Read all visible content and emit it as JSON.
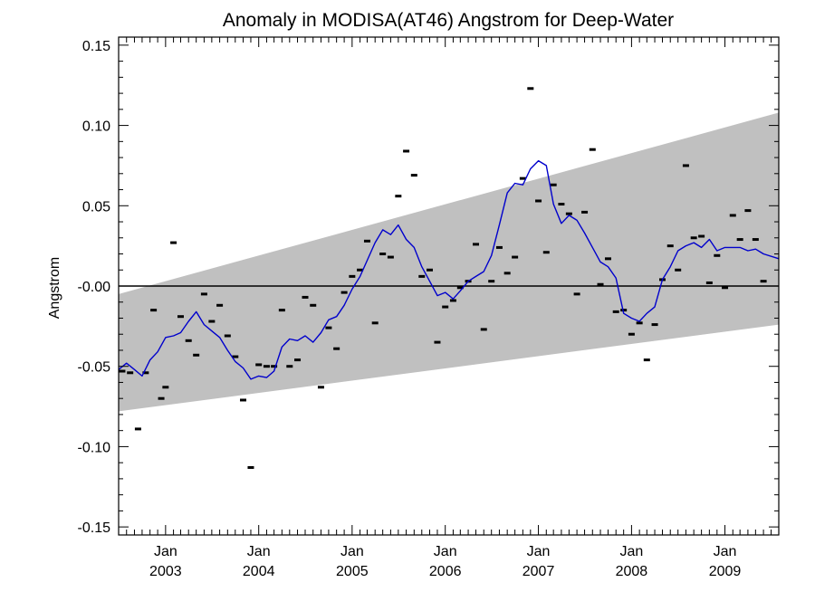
{
  "chart_data": {
    "type": "line",
    "title": "Anomaly in MODISA(AT46) Angstrom for Deep-Water",
    "xlabel": "",
    "ylabel": "Angstrom",
    "xlim": [
      "2002-07-01",
      "2009-07-31"
    ],
    "ylim": [
      -0.155,
      0.155
    ],
    "y_ticks": [
      -0.15,
      -0.1,
      -0.05,
      0.0,
      0.05,
      0.1,
      0.15
    ],
    "y_tick_labels": [
      "-0.15",
      "-0.10",
      "-0.05",
      "-0.00",
      "0.05",
      "0.10",
      "0.15"
    ],
    "x_ticks": [
      {
        "date": "2003-01-01",
        "month": "Jan",
        "year": "2003"
      },
      {
        "date": "2004-01-01",
        "month": "Jan",
        "year": "2004"
      },
      {
        "date": "2005-01-01",
        "month": "Jan",
        "year": "2005"
      },
      {
        "date": "2006-01-01",
        "month": "Jan",
        "year": "2006"
      },
      {
        "date": "2007-01-01",
        "month": "Jan",
        "year": "2007"
      },
      {
        "date": "2008-01-01",
        "month": "Jan",
        "year": "2008"
      },
      {
        "date": "2009-01-01",
        "month": "Jan",
        "year": "2009"
      }
    ],
    "grid": false,
    "zero_line": 0,
    "band": {
      "color": "#c0c0c0",
      "lower": [
        [
          "2002-07-01",
          -0.078
        ],
        [
          "2009-07-31",
          -0.024
        ]
      ],
      "upper": [
        [
          "2002-07-01",
          -0.005
        ],
        [
          "2009-07-31",
          0.108
        ]
      ]
    },
    "series": [
      {
        "kind": "markers",
        "color": "#000000",
        "points": [
          [
            "2002-07-15",
            -0.053
          ],
          [
            "2002-08-15",
            -0.054
          ],
          [
            "2002-09-15",
            -0.089
          ],
          [
            "2002-10-15",
            -0.054
          ],
          [
            "2002-11-15",
            -0.015
          ],
          [
            "2002-12-15",
            -0.07
          ],
          [
            "2003-01-01",
            -0.063
          ],
          [
            "2003-02-01",
            0.027
          ],
          [
            "2003-03-01",
            -0.019
          ],
          [
            "2003-04-01",
            -0.034
          ],
          [
            "2003-05-01",
            -0.043
          ],
          [
            "2003-06-01",
            -0.005
          ],
          [
            "2003-07-01",
            -0.022
          ],
          [
            "2003-08-01",
            -0.012
          ],
          [
            "2003-09-01",
            -0.031
          ],
          [
            "2003-10-01",
            -0.044
          ],
          [
            "2003-11-01",
            -0.071
          ],
          [
            "2003-12-01",
            -0.113
          ],
          [
            "2004-01-01",
            -0.049
          ],
          [
            "2004-02-01",
            -0.05
          ],
          [
            "2004-03-01",
            -0.05
          ],
          [
            "2004-04-01",
            -0.015
          ],
          [
            "2004-05-01",
            -0.05
          ],
          [
            "2004-06-01",
            -0.046
          ],
          [
            "2004-07-01",
            -0.007
          ],
          [
            "2004-08-01",
            -0.012
          ],
          [
            "2004-09-01",
            -0.063
          ],
          [
            "2004-10-01",
            -0.026
          ],
          [
            "2004-11-01",
            -0.039
          ],
          [
            "2004-12-01",
            -0.004
          ],
          [
            "2005-01-01",
            0.006
          ],
          [
            "2005-02-01",
            0.01
          ],
          [
            "2005-03-01",
            0.028
          ],
          [
            "2005-04-01",
            -0.023
          ],
          [
            "2005-05-01",
            0.02
          ],
          [
            "2005-06-01",
            0.018
          ],
          [
            "2005-07-01",
            0.056
          ],
          [
            "2005-08-01",
            0.084
          ],
          [
            "2005-09-01",
            0.069
          ],
          [
            "2005-10-01",
            0.006
          ],
          [
            "2005-11-01",
            0.01
          ],
          [
            "2005-12-01",
            -0.035
          ],
          [
            "2006-01-01",
            -0.013
          ],
          [
            "2006-02-01",
            -0.009
          ],
          [
            "2006-03-01",
            -0.001
          ],
          [
            "2006-04-01",
            0.003
          ],
          [
            "2006-05-01",
            0.026
          ],
          [
            "2006-06-01",
            -0.027
          ],
          [
            "2006-07-01",
            0.003
          ],
          [
            "2006-08-01",
            0.024
          ],
          [
            "2006-09-01",
            0.008
          ],
          [
            "2006-10-01",
            0.018
          ],
          [
            "2006-11-01",
            0.067
          ],
          [
            "2006-12-01",
            0.123
          ],
          [
            "2007-01-01",
            0.053
          ],
          [
            "2007-02-01",
            0.021
          ],
          [
            "2007-03-01",
            0.063
          ],
          [
            "2007-04-01",
            0.051
          ],
          [
            "2007-05-01",
            0.045
          ],
          [
            "2007-06-01",
            -0.005
          ],
          [
            "2007-07-01",
            0.046
          ],
          [
            "2007-08-01",
            0.085
          ],
          [
            "2007-09-01",
            0.001
          ],
          [
            "2007-10-01",
            0.017
          ],
          [
            "2007-11-01",
            -0.016
          ],
          [
            "2007-12-01",
            -0.015
          ],
          [
            "2008-01-01",
            -0.03
          ],
          [
            "2008-02-01",
            -0.023
          ],
          [
            "2008-03-01",
            -0.046
          ],
          [
            "2008-04-01",
            -0.024
          ],
          [
            "2008-05-01",
            0.004
          ],
          [
            "2008-06-01",
            0.025
          ],
          [
            "2008-07-01",
            0.01
          ],
          [
            "2008-08-01",
            0.075
          ],
          [
            "2008-09-01",
            0.03
          ],
          [
            "2008-10-01",
            0.031
          ],
          [
            "2008-11-01",
            0.002
          ],
          [
            "2008-12-01",
            0.019
          ],
          [
            "2009-01-01",
            -0.001
          ],
          [
            "2009-02-01",
            0.044
          ],
          [
            "2009-03-01",
            0.029
          ],
          [
            "2009-04-01",
            0.047
          ],
          [
            "2009-05-01",
            0.029
          ],
          [
            "2009-06-01",
            0.003
          ]
        ]
      },
      {
        "kind": "line",
        "color": "#0000cc",
        "points": [
          [
            "2002-07-01",
            -0.052
          ],
          [
            "2002-08-01",
            -0.048
          ],
          [
            "2002-09-01",
            -0.052
          ],
          [
            "2002-10-01",
            -0.056
          ],
          [
            "2002-11-01",
            -0.046
          ],
          [
            "2002-12-01",
            -0.041
          ],
          [
            "2003-01-01",
            -0.032
          ],
          [
            "2003-02-01",
            -0.031
          ],
          [
            "2003-03-01",
            -0.029
          ],
          [
            "2003-04-01",
            -0.022
          ],
          [
            "2003-05-01",
            -0.016
          ],
          [
            "2003-06-01",
            -0.024
          ],
          [
            "2003-07-01",
            -0.028
          ],
          [
            "2003-08-01",
            -0.032
          ],
          [
            "2003-09-01",
            -0.04
          ],
          [
            "2003-10-01",
            -0.047
          ],
          [
            "2003-11-01",
            -0.051
          ],
          [
            "2003-12-01",
            -0.058
          ],
          [
            "2004-01-01",
            -0.056
          ],
          [
            "2004-02-01",
            -0.057
          ],
          [
            "2004-03-01",
            -0.053
          ],
          [
            "2004-04-01",
            -0.038
          ],
          [
            "2004-05-01",
            -0.033
          ],
          [
            "2004-06-01",
            -0.034
          ],
          [
            "2004-07-01",
            -0.031
          ],
          [
            "2004-08-01",
            -0.035
          ],
          [
            "2004-09-01",
            -0.029
          ],
          [
            "2004-10-01",
            -0.021
          ],
          [
            "2004-11-01",
            -0.019
          ],
          [
            "2004-12-01",
            -0.012
          ],
          [
            "2005-01-01",
            -0.002
          ],
          [
            "2005-02-01",
            0.006
          ],
          [
            "2005-03-01",
            0.016
          ],
          [
            "2005-04-01",
            0.027
          ],
          [
            "2005-05-01",
            0.035
          ],
          [
            "2005-06-01",
            0.032
          ],
          [
            "2005-07-01",
            0.038
          ],
          [
            "2005-08-01",
            0.029
          ],
          [
            "2005-09-01",
            0.024
          ],
          [
            "2005-10-01",
            0.012
          ],
          [
            "2005-11-01",
            0.003
          ],
          [
            "2005-12-01",
            -0.006
          ],
          [
            "2006-01-01",
            -0.004
          ],
          [
            "2006-02-01",
            -0.008
          ],
          [
            "2006-03-01",
            -0.003
          ],
          [
            "2006-04-01",
            0.003
          ],
          [
            "2006-05-01",
            0.006
          ],
          [
            "2006-06-01",
            0.009
          ],
          [
            "2006-07-01",
            0.019
          ],
          [
            "2006-08-01",
            0.038
          ],
          [
            "2006-09-01",
            0.058
          ],
          [
            "2006-10-01",
            0.064
          ],
          [
            "2006-11-01",
            0.063
          ],
          [
            "2006-12-01",
            0.073
          ],
          [
            "2007-01-01",
            0.078
          ],
          [
            "2007-02-01",
            0.075
          ],
          [
            "2007-03-01",
            0.051
          ],
          [
            "2007-04-01",
            0.039
          ],
          [
            "2007-05-01",
            0.044
          ],
          [
            "2007-06-01",
            0.041
          ],
          [
            "2007-07-01",
            0.033
          ],
          [
            "2007-08-01",
            0.024
          ],
          [
            "2007-09-01",
            0.015
          ],
          [
            "2007-10-01",
            0.012
          ],
          [
            "2007-11-01",
            0.005
          ],
          [
            "2007-12-01",
            -0.017
          ],
          [
            "2008-01-01",
            -0.02
          ],
          [
            "2008-02-01",
            -0.022
          ],
          [
            "2008-03-01",
            -0.017
          ],
          [
            "2008-04-01",
            -0.013
          ],
          [
            "2008-05-01",
            0.004
          ],
          [
            "2008-06-01",
            0.012
          ],
          [
            "2008-07-01",
            0.022
          ],
          [
            "2008-08-01",
            0.025
          ],
          [
            "2008-09-01",
            0.027
          ],
          [
            "2008-10-01",
            0.024
          ],
          [
            "2008-11-01",
            0.029
          ],
          [
            "2008-12-01",
            0.022
          ],
          [
            "2009-01-01",
            0.024
          ],
          [
            "2009-02-01",
            0.024
          ],
          [
            "2009-03-01",
            0.024
          ],
          [
            "2009-04-01",
            0.022
          ],
          [
            "2009-05-01",
            0.023
          ],
          [
            "2009-06-01",
            0.02
          ],
          [
            "2009-07-31",
            0.017
          ]
        ]
      }
    ]
  }
}
